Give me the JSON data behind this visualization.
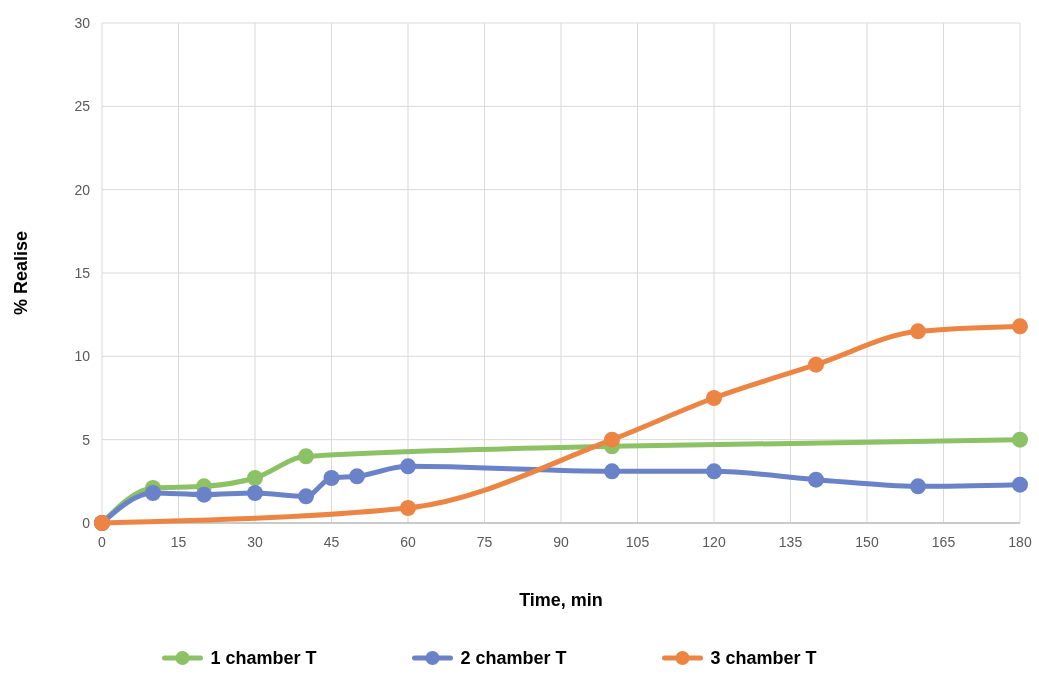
{
  "chart_data": {
    "type": "line",
    "xlabel": "Time, min",
    "ylabel": "% Realise",
    "xlim": [
      0,
      180
    ],
    "xticks": [
      0,
      15,
      30,
      45,
      60,
      75,
      90,
      105,
      120,
      135,
      150,
      165,
      180
    ],
    "ylim": [
      0,
      30
    ],
    "yticks": [
      0,
      5,
      10,
      15,
      20,
      25,
      30
    ],
    "grid": true,
    "legend": "bottom",
    "marker": "circle",
    "series": [
      {
        "name": "1 chamber T",
        "color": "#8cc265",
        "x": [
          0,
          10,
          20,
          30,
          40,
          100,
          180
        ],
        "values": [
          0,
          2.1,
          2.2,
          2.7,
          4.0,
          4.6,
          5.0
        ]
      },
      {
        "name": "2 chamber T",
        "color": "#6a82c8",
        "x": [
          0,
          10,
          20,
          30,
          40,
          45,
          50,
          60,
          100,
          120,
          140,
          160,
          180
        ],
        "values": [
          0,
          1.8,
          1.7,
          1.8,
          1.6,
          2.7,
          2.8,
          3.4,
          3.1,
          3.1,
          2.6,
          2.2,
          2.3
        ]
      },
      {
        "name": "3 chamber T",
        "color": "#ec8544",
        "x": [
          0,
          60,
          100,
          120,
          140,
          160,
          180
        ],
        "values": [
          0,
          0.9,
          5.0,
          7.5,
          9.5,
          11.5,
          11.8
        ]
      }
    ]
  }
}
